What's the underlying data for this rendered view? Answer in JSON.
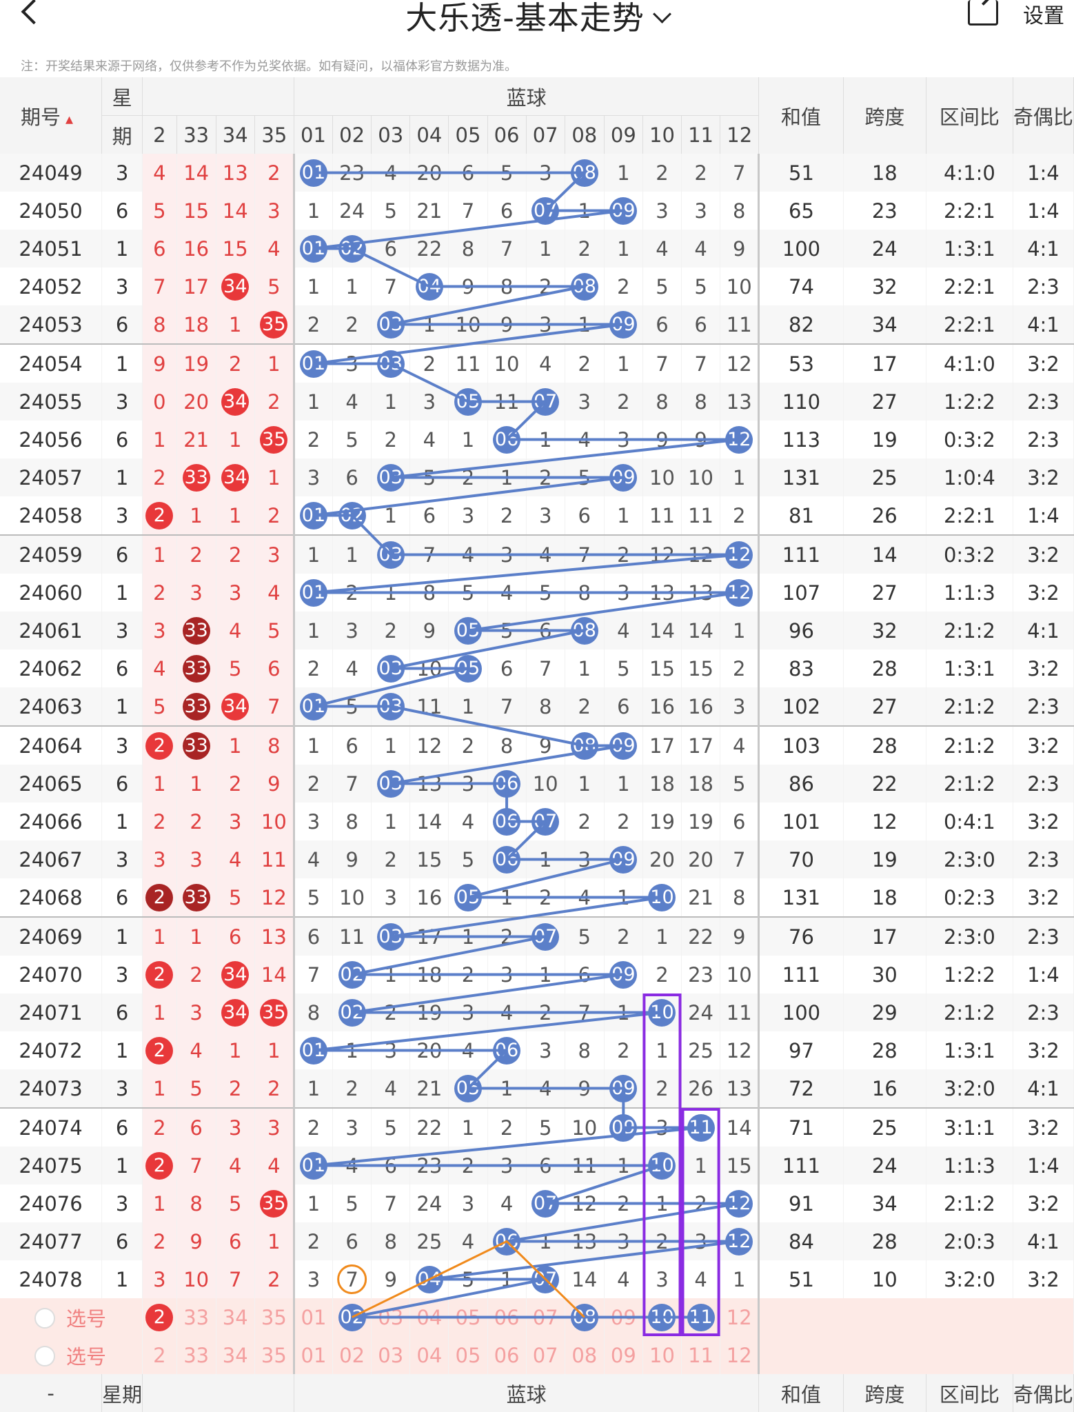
{
  "header": {
    "title": "大乐透-基本走势",
    "settings_label": "设置"
  },
  "note": "注：开奖结果来源于网络，仅供参考不作为兑奖依据。如有疑问，以福体彩官方数据为准。",
  "columns": {
    "period": "期号",
    "week_top": "星",
    "week_bottom": "期",
    "blue_zone": "蓝球",
    "front_partial": [
      "2",
      "33",
      "34",
      "35"
    ],
    "blue_numbers": [
      "01",
      "02",
      "03",
      "04",
      "05",
      "06",
      "07",
      "08",
      "09",
      "10",
      "11",
      "12"
    ],
    "sum": "和值",
    "span": "跨度",
    "zone_ratio": "区间比",
    "odd_even": "奇偶比"
  },
  "rows": [
    {
      "p": "24049",
      "w": "3",
      "f": [
        "4",
        "14",
        "13",
        "2"
      ],
      "fh": [
        0,
        0,
        0,
        0
      ],
      "b": [
        "01",
        "23",
        "4",
        "20",
        "6",
        "5",
        "3",
        "08",
        "1",
        "2",
        "2",
        "7"
      ],
      "s": "51",
      "k": "18",
      "z": "4:1:0",
      "o": "1:4"
    },
    {
      "p": "24050",
      "w": "6",
      "f": [
        "5",
        "15",
        "14",
        "3"
      ],
      "fh": [
        0,
        0,
        0,
        0
      ],
      "b": [
        "1",
        "24",
        "5",
        "21",
        "7",
        "6",
        "07",
        "1",
        "09",
        "3",
        "3",
        "8"
      ],
      "s": "65",
      "k": "23",
      "z": "2:2:1",
      "o": "1:4"
    },
    {
      "p": "24051",
      "w": "1",
      "f": [
        "6",
        "16",
        "15",
        "4"
      ],
      "fh": [
        0,
        0,
        0,
        0
      ],
      "b": [
        "01",
        "02",
        "6",
        "22",
        "8",
        "7",
        "1",
        "2",
        "1",
        "4",
        "4",
        "9"
      ],
      "s": "100",
      "k": "24",
      "z": "1:3:1",
      "o": "4:1"
    },
    {
      "p": "24052",
      "w": "3",
      "f": [
        "7",
        "17",
        "34",
        "5"
      ],
      "fh": [
        0,
        0,
        1,
        0
      ],
      "b": [
        "1",
        "1",
        "7",
        "04",
        "9",
        "8",
        "2",
        "08",
        "2",
        "5",
        "5",
        "10"
      ],
      "s": "74",
      "k": "32",
      "z": "2:2:1",
      "o": "2:3"
    },
    {
      "p": "24053",
      "w": "6",
      "f": [
        "8",
        "18",
        "1",
        "35"
      ],
      "fh": [
        0,
        0,
        0,
        1
      ],
      "b": [
        "2",
        "2",
        "03",
        "1",
        "10",
        "9",
        "3",
        "1",
        "09",
        "6",
        "6",
        "11"
      ],
      "s": "82",
      "k": "34",
      "z": "2:2:1",
      "o": "4:1"
    },
    {
      "p": "24054",
      "w": "1",
      "f": [
        "9",
        "19",
        "2",
        "1"
      ],
      "fh": [
        0,
        0,
        0,
        0
      ],
      "b": [
        "01",
        "3",
        "03",
        "2",
        "11",
        "10",
        "4",
        "2",
        "1",
        "7",
        "7",
        "12"
      ],
      "s": "53",
      "k": "17",
      "z": "4:1:0",
      "o": "3:2"
    },
    {
      "p": "24055",
      "w": "3",
      "f": [
        "0",
        "20",
        "34",
        "2"
      ],
      "fh": [
        0,
        0,
        1,
        0
      ],
      "b": [
        "1",
        "4",
        "1",
        "3",
        "05",
        "11",
        "07",
        "3",
        "2",
        "8",
        "8",
        "13"
      ],
      "s": "110",
      "k": "27",
      "z": "1:2:2",
      "o": "2:3"
    },
    {
      "p": "24056",
      "w": "6",
      "f": [
        "1",
        "21",
        "1",
        "35"
      ],
      "fh": [
        0,
        0,
        0,
        1
      ],
      "b": [
        "2",
        "5",
        "2",
        "4",
        "1",
        "06",
        "1",
        "4",
        "3",
        "9",
        "9",
        "12"
      ],
      "s": "113",
      "k": "19",
      "z": "0:3:2",
      "o": "2:3"
    },
    {
      "p": "24057",
      "w": "1",
      "f": [
        "2",
        "33",
        "34",
        "1"
      ],
      "fh": [
        0,
        1,
        1,
        0
      ],
      "b": [
        "3",
        "6",
        "03",
        "5",
        "2",
        "1",
        "2",
        "5",
        "09",
        "10",
        "10",
        "1"
      ],
      "s": "131",
      "k": "25",
      "z": "1:0:4",
      "o": "3:2"
    },
    {
      "p": "24058",
      "w": "3",
      "f": [
        "2",
        "1",
        "1",
        "2"
      ],
      "fh": [
        1,
        0,
        0,
        0
      ],
      "b": [
        "01",
        "02",
        "1",
        "6",
        "3",
        "2",
        "3",
        "6",
        "1",
        "11",
        "11",
        "2"
      ],
      "s": "81",
      "k": "26",
      "z": "2:2:1",
      "o": "1:4"
    },
    {
      "p": "24059",
      "w": "6",
      "f": [
        "1",
        "2",
        "2",
        "3"
      ],
      "fh": [
        0,
        0,
        0,
        0
      ],
      "b": [
        "1",
        "1",
        "03",
        "7",
        "4",
        "3",
        "4",
        "7",
        "2",
        "12",
        "12",
        "12"
      ],
      "s": "111",
      "k": "14",
      "z": "0:3:2",
      "o": "3:2"
    },
    {
      "p": "24060",
      "w": "1",
      "f": [
        "2",
        "3",
        "3",
        "4"
      ],
      "fh": [
        0,
        0,
        0,
        0
      ],
      "b": [
        "01",
        "2",
        "1",
        "8",
        "5",
        "4",
        "5",
        "8",
        "3",
        "13",
        "13",
        "12"
      ],
      "s": "107",
      "k": "27",
      "z": "1:1:3",
      "o": "3:2"
    },
    {
      "p": "24061",
      "w": "3",
      "f": [
        "3",
        "33",
        "4",
        "5"
      ],
      "fh": [
        0,
        2,
        0,
        0
      ],
      "b": [
        "1",
        "3",
        "2",
        "9",
        "05",
        "5",
        "6",
        "08",
        "4",
        "14",
        "14",
        "1"
      ],
      "s": "96",
      "k": "32",
      "z": "2:1:2",
      "o": "4:1"
    },
    {
      "p": "24062",
      "w": "6",
      "f": [
        "4",
        "33",
        "5",
        "6"
      ],
      "fh": [
        0,
        2,
        0,
        0
      ],
      "b": [
        "2",
        "4",
        "03",
        "10",
        "05",
        "6",
        "7",
        "1",
        "5",
        "15",
        "15",
        "2"
      ],
      "s": "83",
      "k": "28",
      "z": "1:3:1",
      "o": "3:2"
    },
    {
      "p": "24063",
      "w": "1",
      "f": [
        "5",
        "33",
        "34",
        "7"
      ],
      "fh": [
        0,
        2,
        1,
        0
      ],
      "b": [
        "01",
        "5",
        "03",
        "11",
        "1",
        "7",
        "8",
        "2",
        "6",
        "16",
        "16",
        "3"
      ],
      "s": "102",
      "k": "27",
      "z": "2:1:2",
      "o": "2:3"
    },
    {
      "p": "24064",
      "w": "3",
      "f": [
        "2",
        "33",
        "1",
        "8"
      ],
      "fh": [
        1,
        2,
        0,
        0
      ],
      "b": [
        "1",
        "6",
        "1",
        "12",
        "2",
        "8",
        "9",
        "08",
        "09",
        "17",
        "17",
        "4"
      ],
      "s": "103",
      "k": "28",
      "z": "2:1:2",
      "o": "3:2"
    },
    {
      "p": "24065",
      "w": "6",
      "f": [
        "1",
        "1",
        "2",
        "9"
      ],
      "fh": [
        0,
        0,
        0,
        0
      ],
      "b": [
        "2",
        "7",
        "03",
        "13",
        "3",
        "06",
        "10",
        "1",
        "1",
        "18",
        "18",
        "5"
      ],
      "s": "86",
      "k": "22",
      "z": "2:1:2",
      "o": "2:3"
    },
    {
      "p": "24066",
      "w": "1",
      "f": [
        "2",
        "2",
        "3",
        "10"
      ],
      "fh": [
        0,
        0,
        0,
        0
      ],
      "b": [
        "3",
        "8",
        "1",
        "14",
        "4",
        "06",
        "07",
        "2",
        "2",
        "19",
        "19",
        "6"
      ],
      "s": "101",
      "k": "12",
      "z": "0:4:1",
      "o": "3:2"
    },
    {
      "p": "24067",
      "w": "3",
      "f": [
        "3",
        "3",
        "4",
        "11"
      ],
      "fh": [
        0,
        0,
        0,
        0
      ],
      "b": [
        "4",
        "9",
        "2",
        "15",
        "5",
        "06",
        "1",
        "3",
        "09",
        "20",
        "20",
        "7"
      ],
      "s": "70",
      "k": "19",
      "z": "2:3:0",
      "o": "2:3"
    },
    {
      "p": "24068",
      "w": "6",
      "f": [
        "2",
        "33",
        "5",
        "12"
      ],
      "fh": [
        2,
        2,
        0,
        0
      ],
      "b": [
        "5",
        "10",
        "3",
        "16",
        "05",
        "1",
        "2",
        "4",
        "1",
        "10",
        "21",
        "8"
      ],
      "s": "131",
      "k": "18",
      "z": "0:2:3",
      "o": "3:2"
    },
    {
      "p": "24069",
      "w": "1",
      "f": [
        "1",
        "1",
        "6",
        "13"
      ],
      "fh": [
        0,
        0,
        0,
        0
      ],
      "b": [
        "6",
        "11",
        "03",
        "17",
        "1",
        "2",
        "07",
        "5",
        "2",
        "1",
        "22",
        "9"
      ],
      "s": "76",
      "k": "17",
      "z": "2:3:0",
      "o": "2:3"
    },
    {
      "p": "24070",
      "w": "3",
      "f": [
        "2",
        "2",
        "34",
        "14"
      ],
      "fh": [
        1,
        0,
        1,
        0
      ],
      "b": [
        "7",
        "02",
        "1",
        "18",
        "2",
        "3",
        "1",
        "6",
        "09",
        "2",
        "23",
        "10"
      ],
      "s": "111",
      "k": "30",
      "z": "1:2:2",
      "o": "1:4"
    },
    {
      "p": "24071",
      "w": "6",
      "f": [
        "1",
        "3",
        "34",
        "35"
      ],
      "fh": [
        0,
        0,
        1,
        1
      ],
      "b": [
        "8",
        "02",
        "2",
        "19",
        "3",
        "4",
        "2",
        "7",
        "1",
        "10",
        "24",
        "11"
      ],
      "s": "100",
      "k": "29",
      "z": "2:1:2",
      "o": "2:3"
    },
    {
      "p": "24072",
      "w": "1",
      "f": [
        "2",
        "4",
        "1",
        "1"
      ],
      "fh": [
        1,
        0,
        0,
        0
      ],
      "b": [
        "01",
        "1",
        "3",
        "20",
        "4",
        "06",
        "3",
        "8",
        "2",
        "1",
        "25",
        "12"
      ],
      "s": "97",
      "k": "28",
      "z": "1:3:1",
      "o": "3:2"
    },
    {
      "p": "24073",
      "w": "3",
      "f": [
        "1",
        "5",
        "2",
        "2"
      ],
      "fh": [
        0,
        0,
        0,
        0
      ],
      "b": [
        "1",
        "2",
        "4",
        "21",
        "05",
        "1",
        "4",
        "9",
        "09",
        "2",
        "26",
        "13"
      ],
      "s": "72",
      "k": "16",
      "z": "3:2:0",
      "o": "4:1"
    },
    {
      "p": "24074",
      "w": "6",
      "f": [
        "2",
        "6",
        "3",
        "3"
      ],
      "fh": [
        0,
        0,
        0,
        0
      ],
      "b": [
        "2",
        "3",
        "5",
        "22",
        "1",
        "2",
        "5",
        "10",
        "09",
        "3",
        "11",
        "14"
      ],
      "s": "71",
      "k": "25",
      "z": "3:1:1",
      "o": "3:2"
    },
    {
      "p": "24075",
      "w": "1",
      "f": [
        "2",
        "7",
        "4",
        "4"
      ],
      "fh": [
        1,
        0,
        0,
        0
      ],
      "b": [
        "01",
        "4",
        "6",
        "23",
        "2",
        "3",
        "6",
        "11",
        "1",
        "10",
        "1",
        "15"
      ],
      "s": "111",
      "k": "24",
      "z": "1:1:3",
      "o": "1:4"
    },
    {
      "p": "24076",
      "w": "3",
      "f": [
        "1",
        "8",
        "5",
        "35"
      ],
      "fh": [
        0,
        0,
        0,
        1
      ],
      "b": [
        "1",
        "5",
        "7",
        "24",
        "3",
        "4",
        "07",
        "12",
        "2",
        "1",
        "2",
        "12"
      ],
      "s": "91",
      "k": "34",
      "z": "2:1:2",
      "o": "3:2"
    },
    {
      "p": "24077",
      "w": "6",
      "f": [
        "2",
        "9",
        "6",
        "1"
      ],
      "fh": [
        0,
        0,
        0,
        0
      ],
      "b": [
        "2",
        "6",
        "8",
        "25",
        "4",
        "06",
        "1",
        "13",
        "3",
        "2",
        "3",
        "12"
      ],
      "s": "84",
      "k": "28",
      "z": "2:0:3",
      "o": "4:1"
    },
    {
      "p": "24078",
      "w": "1",
      "f": [
        "3",
        "10",
        "7",
        "2"
      ],
      "fh": [
        0,
        0,
        0,
        0
      ],
      "b": [
        "3",
        "7",
        "9",
        "04",
        "5",
        "1",
        "07",
        "14",
        "4",
        "3",
        "4",
        "1"
      ],
      "s": "51",
      "k": "10",
      "z": "3:2:0",
      "o": "3:2"
    }
  ],
  "select_rows": [
    {
      "label": "选号",
      "f": [
        "2",
        "33",
        "34",
        "35"
      ],
      "fh": [
        1,
        0,
        0,
        0
      ],
      "b": [
        "01",
        "02",
        "03",
        "04",
        "05",
        "06",
        "07",
        "08",
        "09",
        "10",
        "11",
        "12"
      ],
      "bh": [
        0,
        1,
        0,
        0,
        0,
        0,
        0,
        1,
        0,
        1,
        1,
        0
      ]
    },
    {
      "label": "选号",
      "f": [
        "2",
        "33",
        "34",
        "35"
      ],
      "fh": [
        0,
        0,
        0,
        0
      ],
      "b": [
        "01",
        "02",
        "03",
        "04",
        "05",
        "06",
        "07",
        "08",
        "09",
        "10",
        "11",
        "12"
      ],
      "bh": [
        0,
        0,
        0,
        0,
        0,
        0,
        0,
        0,
        0,
        0,
        0,
        0
      ]
    }
  ],
  "footer": {
    "period": "-",
    "week": "星期",
    "blue_zone": "蓝球",
    "sum": "和值",
    "span": "跨度",
    "zone_ratio": "区间比",
    "odd_even": "奇偶比"
  },
  "colors": {
    "blue_ball": "#5b7fc9",
    "red_ball": "#e8383a",
    "dark_red_ball": "#a82424",
    "purple_box": "#8a2be2",
    "orange_mark": "#f08a1c"
  }
}
